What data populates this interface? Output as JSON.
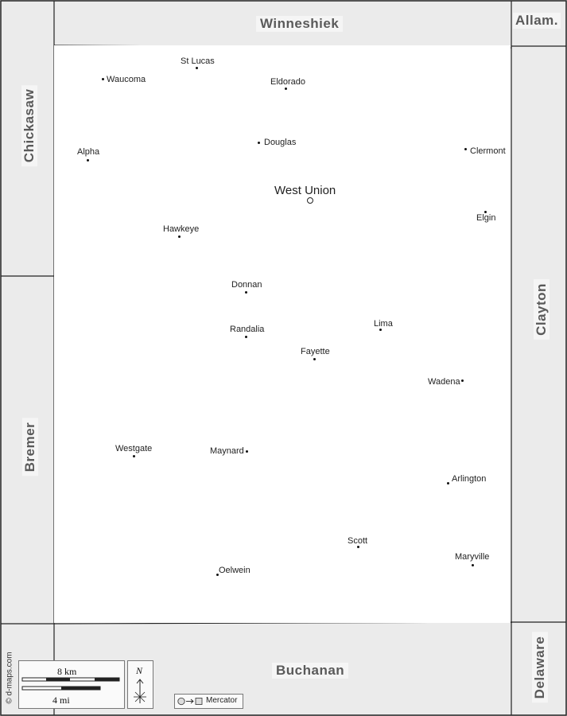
{
  "map": {
    "credit": "© d-maps.com",
    "neighbors": {
      "north": "Winneshiek",
      "northeast": "Allam.",
      "west_upper": "Chickasaw",
      "west_lower": "Bremer",
      "east": "Clayton",
      "south": "Buchanan",
      "southeast": "Delaware"
    },
    "seat": {
      "name": "West Union"
    },
    "towns": [
      "St Lucas",
      "Waucoma",
      "Eldorado",
      "Douglas",
      "Alpha",
      "Clermont",
      "Elgin",
      "Hawkeye",
      "Donnan",
      "Randalia",
      "Lima",
      "Fayette",
      "Wadena",
      "Westgate",
      "Maynard",
      "Arlington",
      "Scott",
      "Maryville",
      "Oelwein"
    ],
    "scale": {
      "km_label": "8 km",
      "mi_label": "4 mi"
    },
    "north_label": "N",
    "projection": "Mercator"
  }
}
